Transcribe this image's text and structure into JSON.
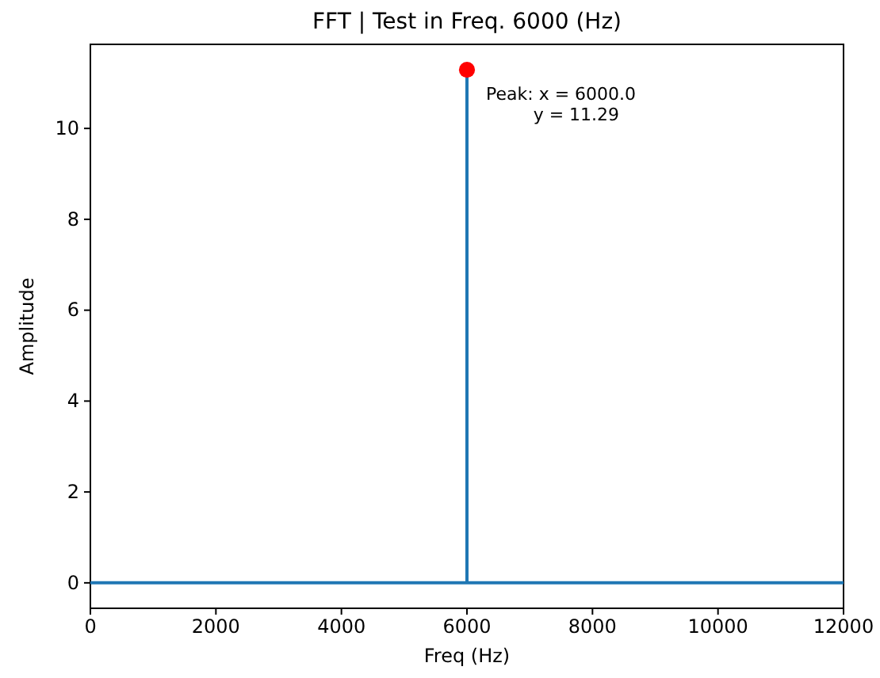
{
  "chart_data": {
    "type": "line",
    "title": "FFT | Test in Freq. 6000 (Hz)",
    "xlabel": "Freq (Hz)",
    "ylabel": "Amplitude",
    "xlim": [
      0,
      12000
    ],
    "xticks": [
      0,
      2000,
      4000,
      6000,
      8000,
      10000,
      12000
    ],
    "ylim": [
      -0.56,
      11.85
    ],
    "yticks": [
      0,
      2,
      4,
      6,
      8,
      10
    ],
    "grid": false,
    "marker": "none",
    "line_style": "solid",
    "series": [
      {
        "color": "#1f77b4",
        "x": [
          0,
          6000,
          6000,
          6000,
          12000
        ],
        "values": [
          0,
          0,
          11.29,
          0,
          0
        ]
      },
      {
        "type": "scatter",
        "color": "#ff0000",
        "marker": "circle",
        "x": [
          6000
        ],
        "values": [
          11.29
        ]
      }
    ],
    "annotations": [
      {
        "text": "Peak: x = 6000.0\ny = 11.29",
        "x": 6000,
        "y": 11.29
      }
    ]
  }
}
